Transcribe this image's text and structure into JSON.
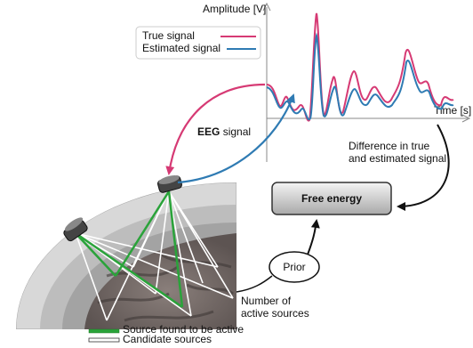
{
  "plot": {
    "y_axis_label": "Amplitude [V]",
    "x_axis_label": "Time [s]",
    "legend": [
      {
        "name": "True signal",
        "color": "#d63a74"
      },
      {
        "name": "Estimated signal",
        "color": "#2f7bb3"
      }
    ]
  },
  "eeg_label": {
    "bold": "EEG",
    "rest": "signal"
  },
  "difference_label": [
    "Difference in true",
    "and estimated signal"
  ],
  "free_energy": "Free energy",
  "prior": "Prior",
  "sources_label": [
    "Number of",
    "active sources"
  ],
  "bottom_legend": [
    "Source found to be active",
    "Candidate sources"
  ]
}
